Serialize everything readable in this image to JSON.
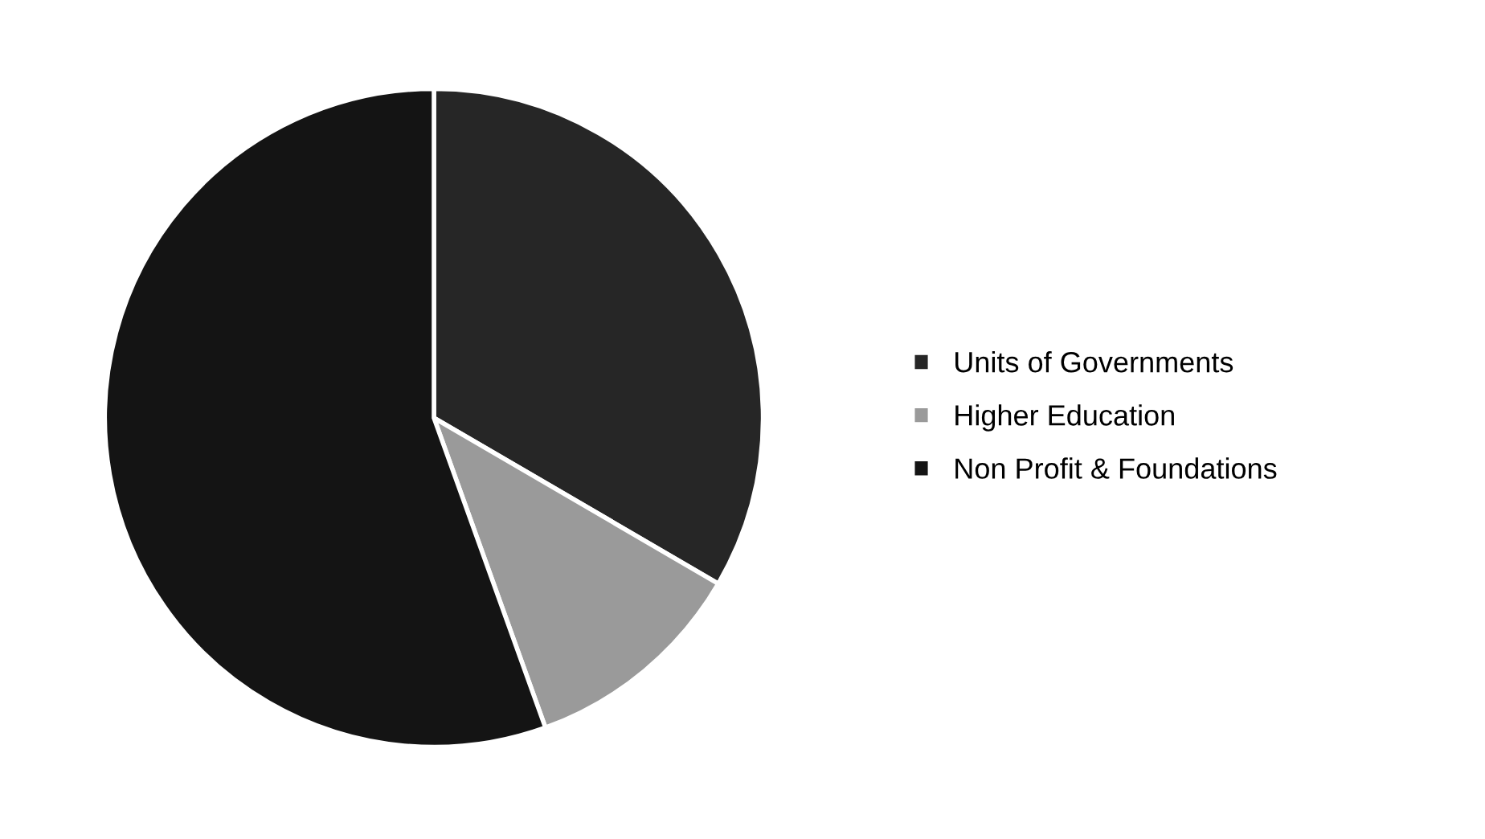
{
  "chart_data": {
    "type": "pie",
    "categories": [
      "Units of Governments",
      "Higher Education",
      "Non Profit & Foundations"
    ],
    "values": [
      33.4,
      11.1,
      55.5
    ],
    "colors": [
      "#262626",
      "#9a9a9a",
      "#141414"
    ],
    "legend": "right"
  }
}
